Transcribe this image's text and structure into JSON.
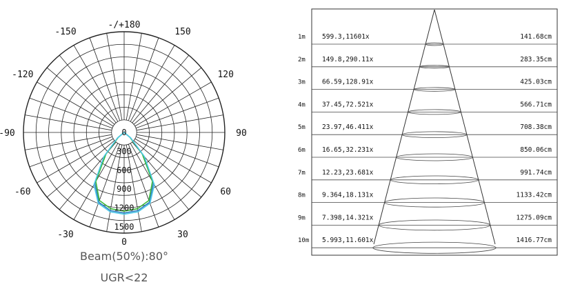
{
  "polar": {
    "angle_labels": [
      "-/+180",
      "-150",
      "150",
      "-120",
      "120",
      "-90",
      "90",
      "-60",
      "60",
      "-30",
      "30",
      "0"
    ],
    "radial_labels": [
      "0",
      "300",
      "600",
      "900",
      "1200",
      "1500"
    ],
    "radial_max": 1600,
    "colors": {
      "series_a": "#2f7fbf",
      "series_b": "#38b638",
      "series_c": "#4fc9e8"
    },
    "beam_text": "Beam(50%):80°",
    "ugr_text": "UGR<22"
  },
  "chart_data": [
    {
      "type": "polar",
      "angular_range": [
        -180,
        180
      ],
      "radial_range": [
        0,
        1500
      ],
      "radial_ticks": [
        0,
        300,
        600,
        900,
        1200,
        1500
      ],
      "angle_ticks": [
        -180,
        -150,
        -120,
        -90,
        -60,
        -30,
        0,
        30,
        60,
        90,
        120,
        150
      ],
      "series": [
        {
          "angles": [
            -50,
            -40,
            -30,
            -20,
            -10,
            0,
            10,
            20,
            30,
            40,
            50
          ],
          "values": [
            130,
            480,
            930,
            1180,
            1260,
            1280,
            1260,
            1180,
            930,
            480,
            130
          ]
        },
        {
          "angles": [
            -50,
            -40,
            -30,
            -20,
            -10,
            0,
            10,
            20,
            30,
            40,
            50
          ],
          "values": [
            120,
            450,
            900,
            1150,
            1230,
            1250,
            1230,
            1150,
            900,
            450,
            120
          ]
        },
        {
          "angles": [
            -50,
            -40,
            -30,
            -20,
            -10,
            0,
            10,
            20,
            30,
            40,
            50
          ],
          "values": [
            140,
            500,
            960,
            1200,
            1280,
            1300,
            1280,
            1200,
            960,
            500,
            140
          ]
        }
      ],
      "annotations": [
        "Beam(50%):80°",
        "UGR<22"
      ]
    },
    {
      "type": "table",
      "rows": [
        {
          "distance": "1m",
          "illuminance": "599.3,11601x",
          "diameter": "141.68cm"
        },
        {
          "distance": "2m",
          "illuminance": "149.8,290.11x",
          "diameter": "283.35cm"
        },
        {
          "distance": "3m",
          "illuminance": "66.59,128.91x",
          "diameter": "425.03cm"
        },
        {
          "distance": "4m",
          "illuminance": "37.45,72.521x",
          "diameter": "566.71cm"
        },
        {
          "distance": "5m",
          "illuminance": "23.97,46.411x",
          "diameter": "708.38cm"
        },
        {
          "distance": "6m",
          "illuminance": "16.65,32.231x",
          "diameter": "850.06cm"
        },
        {
          "distance": "7m",
          "illuminance": "12.23,23.681x",
          "diameter": "991.74cm"
        },
        {
          "distance": "8m",
          "illuminance": "9.364,18.131x",
          "diameter": "1133.42cm"
        },
        {
          "distance": "9m",
          "illuminance": "7.398,14.321x",
          "diameter": "1275.09cm"
        },
        {
          "distance": "10m",
          "illuminance": "5.993,11.601x",
          "diameter": "1416.77cm"
        }
      ]
    }
  ]
}
